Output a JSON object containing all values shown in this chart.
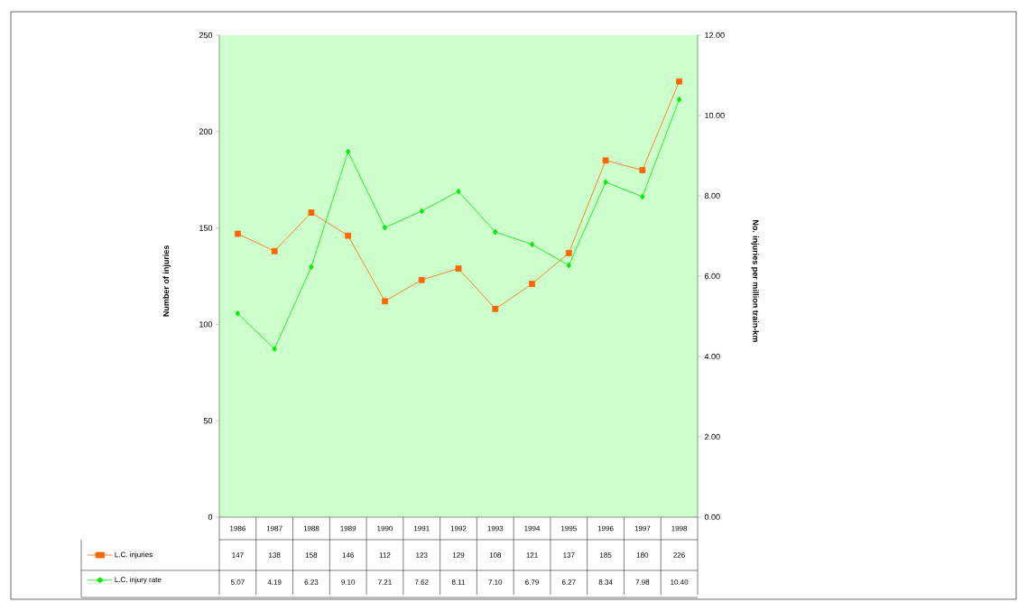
{
  "chart_data": {
    "type": "line",
    "ylabel": "Number of injuries",
    "y2label": "No. injuries per million train-km",
    "categories": [
      "1986",
      "1987",
      "1988",
      "1989",
      "1990",
      "1991",
      "1992",
      "1993",
      "1994",
      "1995",
      "1996",
      "1997",
      "1998"
    ],
    "series": [
      {
        "name": "L.C. injuries",
        "color": "#ff6600",
        "marker": "square",
        "values": [
          147,
          138,
          158,
          146,
          112,
          123,
          129,
          108,
          121,
          137,
          185,
          180,
          226
        ],
        "value_labels": [
          "147",
          "138",
          "158",
          "146",
          "112",
          "123",
          "129",
          "108",
          "121",
          "137",
          "185",
          "180",
          "226"
        ]
      },
      {
        "name": "L.C. injury rate",
        "color": "#00ee00",
        "marker": "diamond",
        "axis": "y2",
        "values": [
          5.07,
          4.19,
          6.23,
          9.1,
          7.21,
          7.62,
          8.11,
          7.1,
          6.79,
          6.27,
          8.34,
          7.98,
          10.4
        ],
        "value_labels": [
          "5.07",
          "4.19",
          "6.23",
          "9.10",
          "7.21",
          "7.62",
          "8.11",
          "7.10",
          "6.79",
          "6.27",
          "8.34",
          "7.98",
          "10.40"
        ]
      }
    ],
    "ylim": [
      0,
      250
    ],
    "yticks": [
      0,
      50,
      100,
      150,
      200,
      250
    ],
    "y2lim": [
      0,
      12
    ],
    "y2ticks": [
      {
        "value": 0,
        "label": "0.00"
      },
      {
        "value": 2,
        "label": "2.00"
      },
      {
        "value": 4,
        "label": "4.00"
      },
      {
        "value": 6,
        "label": "6.00"
      },
      {
        "value": 8,
        "label": "8.00"
      },
      {
        "value": 10,
        "label": "10.00"
      },
      {
        "value": 12,
        "label": "12.00"
      }
    ],
    "legend": "bottom left",
    "grid": false
  }
}
